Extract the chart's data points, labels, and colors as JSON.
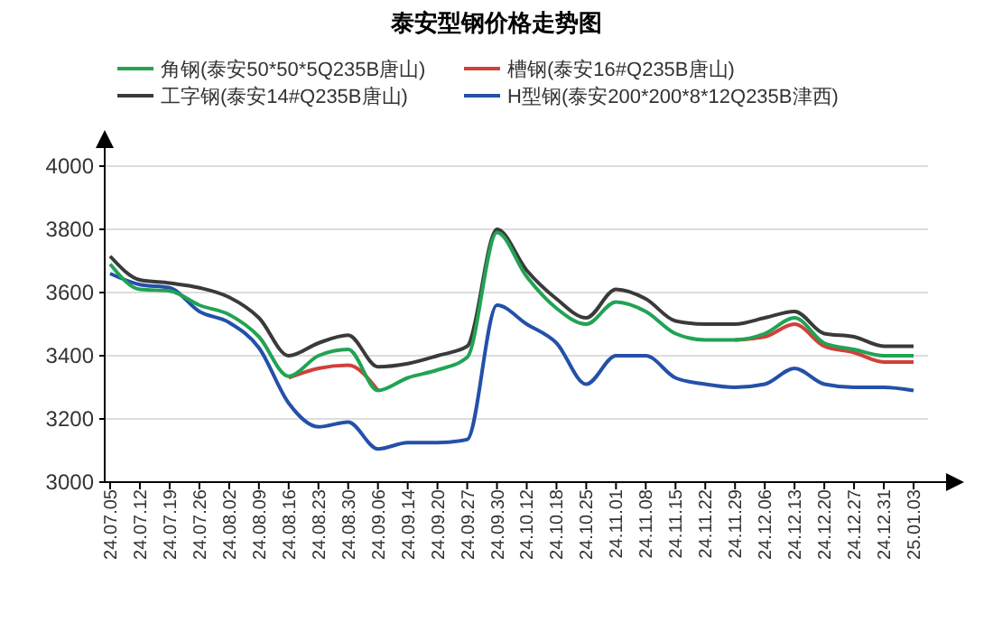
{
  "chart_data": {
    "type": "line",
    "title": "泰安型钢价格走势图",
    "categories": [
      "24.07.05",
      "24.07.12",
      "24.07.19",
      "24.07.26",
      "24.08.02",
      "24.08.09",
      "24.08.16",
      "24.08.23",
      "24.08.30",
      "24.09.06",
      "24.09.14",
      "24.09.20",
      "24.09.27",
      "24.09.30",
      "24.10.12",
      "24.10.18",
      "24.10.25",
      "24.11.01",
      "24.11.08",
      "24.11.15",
      "24.11.22",
      "24.11.29",
      "24.12.06",
      "24.12.13",
      "24.12.20",
      "24.12.27",
      "24.12.31",
      "25.01.03"
    ],
    "series": [
      {
        "name": "角钢(泰安50*50*5Q235B唐山)",
        "color": "#21a354",
        "values": [
          3690,
          3610,
          3605,
          3560,
          3530,
          3460,
          3335,
          3400,
          3420,
          3290,
          3330,
          3355,
          3395,
          3790,
          3650,
          3550,
          3500,
          3570,
          3540,
          3470,
          3450,
          3450,
          3470,
          3520,
          3440,
          3420,
          3400,
          3400
        ]
      },
      {
        "name": "槽钢(泰安16#Q235B唐山)",
        "color": "#d0403a",
        "values": [
          null,
          null,
          null,
          null,
          null,
          null,
          3330,
          3360,
          3370,
          3290,
          null,
          null,
          null,
          null,
          null,
          null,
          null,
          null,
          null,
          null,
          null,
          3450,
          3460,
          3500,
          3430,
          3410,
          3380,
          3380
        ]
      },
      {
        "name": "工字钢(泰安14#Q235B唐山)",
        "color": "#3a3a3a",
        "values": [
          3715,
          3640,
          3630,
          3615,
          3585,
          3520,
          3400,
          3440,
          3465,
          3365,
          3375,
          3400,
          3430,
          3800,
          3670,
          3580,
          3520,
          3610,
          3580,
          3510,
          3500,
          3500,
          3520,
          3540,
          3470,
          3460,
          3430,
          3430
        ]
      },
      {
        "name": "H型钢(泰安200*200*8*12Q235B津西)",
        "color": "#2450a8",
        "values": [
          3660,
          3625,
          3615,
          3540,
          3505,
          3425,
          3250,
          3175,
          3190,
          3105,
          3125,
          3125,
          3135,
          3560,
          3500,
          3440,
          3310,
          3400,
          3400,
          3330,
          3310,
          3300,
          3310,
          3360,
          3310,
          3300,
          3300,
          3290
        ]
      }
    ],
    "ylim": [
      3000,
      4000
    ],
    "yticks": [
      3000,
      3200,
      3400,
      3600,
      3800,
      4000
    ],
    "grid": "y",
    "legend": "top",
    "marker": "none",
    "line_style": "solid"
  }
}
